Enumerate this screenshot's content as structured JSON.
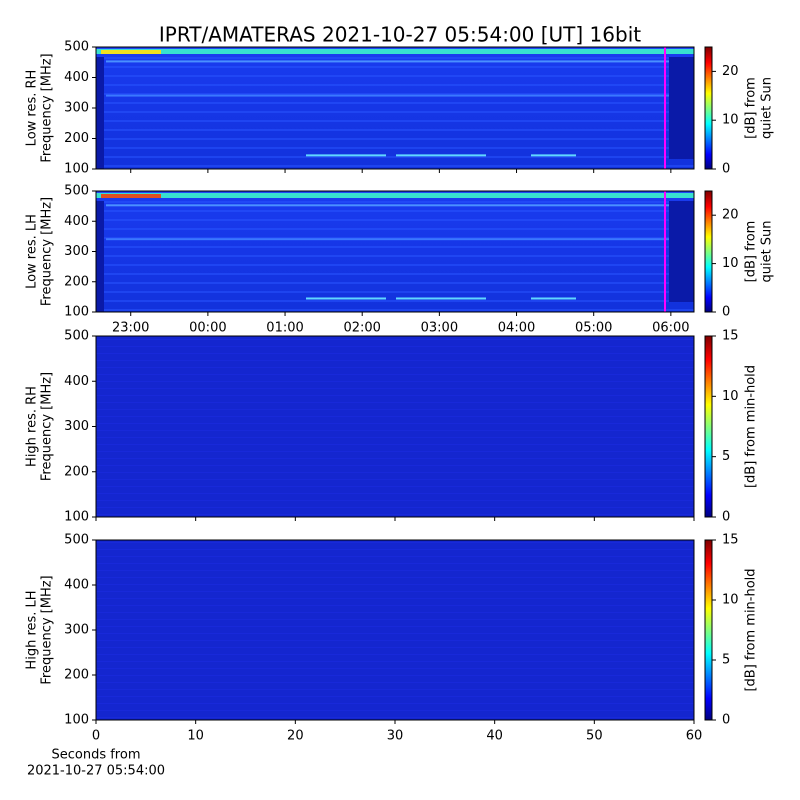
{
  "title": "IPRT/AMATERAS 2021-10-27 05:54:00 [UT]   16bit",
  "chart_data": [
    {
      "type": "spectrogram",
      "ylabel": [
        "Low res. RH",
        "Frequency [MHz]"
      ],
      "ylim": [
        100,
        500
      ],
      "yticks": [
        100,
        200,
        300,
        400,
        500
      ],
      "xlim": [
        22.55,
        30.3
      ],
      "colorbar": {
        "lim": [
          0,
          25
        ],
        "ticks": [
          0,
          10,
          20
        ],
        "label": [
          "[dB] from",
          "quiet Sun"
        ]
      }
    },
    {
      "type": "spectrogram",
      "ylabel": [
        "Low res. LH",
        "Frequency [MHz]"
      ],
      "ylim": [
        100,
        500
      ],
      "yticks": [
        100,
        200,
        300,
        400,
        500
      ],
      "xlim": [
        22.55,
        30.3
      ],
      "xticks": [
        {
          "value": 23,
          "label": "23:00"
        },
        {
          "value": 24,
          "label": "00:00"
        },
        {
          "value": 25,
          "label": "01:00"
        },
        {
          "value": 26,
          "label": "02:00"
        },
        {
          "value": 27,
          "label": "03:00"
        },
        {
          "value": 28,
          "label": "04:00"
        },
        {
          "value": 29,
          "label": "05:00"
        },
        {
          "value": 30,
          "label": "06:00"
        }
      ],
      "colorbar": {
        "lim": [
          0,
          25
        ],
        "ticks": [
          0,
          10,
          20
        ],
        "label": [
          "[dB] from",
          "quiet Sun"
        ]
      }
    },
    {
      "type": "spectrogram",
      "ylabel": [
        "High res. RH",
        "Frequency [MHz]"
      ],
      "ylim": [
        100,
        500
      ],
      "yticks": [
        100,
        200,
        300,
        400,
        500
      ],
      "xlim": [
        0,
        60
      ],
      "colorbar": {
        "lim": [
          0,
          15
        ],
        "ticks": [
          0,
          5,
          10,
          15
        ],
        "label": [
          "[dB] from min-hold"
        ]
      }
    },
    {
      "type": "spectrogram",
      "ylabel": [
        "High res. LH",
        "Frequency [MHz]"
      ],
      "ylim": [
        100,
        500
      ],
      "yticks": [
        100,
        200,
        300,
        400,
        500
      ],
      "xlim": [
        0,
        60
      ],
      "xticks": [
        0,
        10,
        20,
        30,
        40,
        50,
        60
      ],
      "xlabel": [
        "Seconds from",
        "2021-10-27 05:54:00"
      ],
      "colorbar": {
        "lim": [
          0,
          15
        ],
        "ticks": [
          0,
          5,
          10,
          15
        ],
        "label": [
          "[dB] from min-hold"
        ]
      }
    }
  ]
}
